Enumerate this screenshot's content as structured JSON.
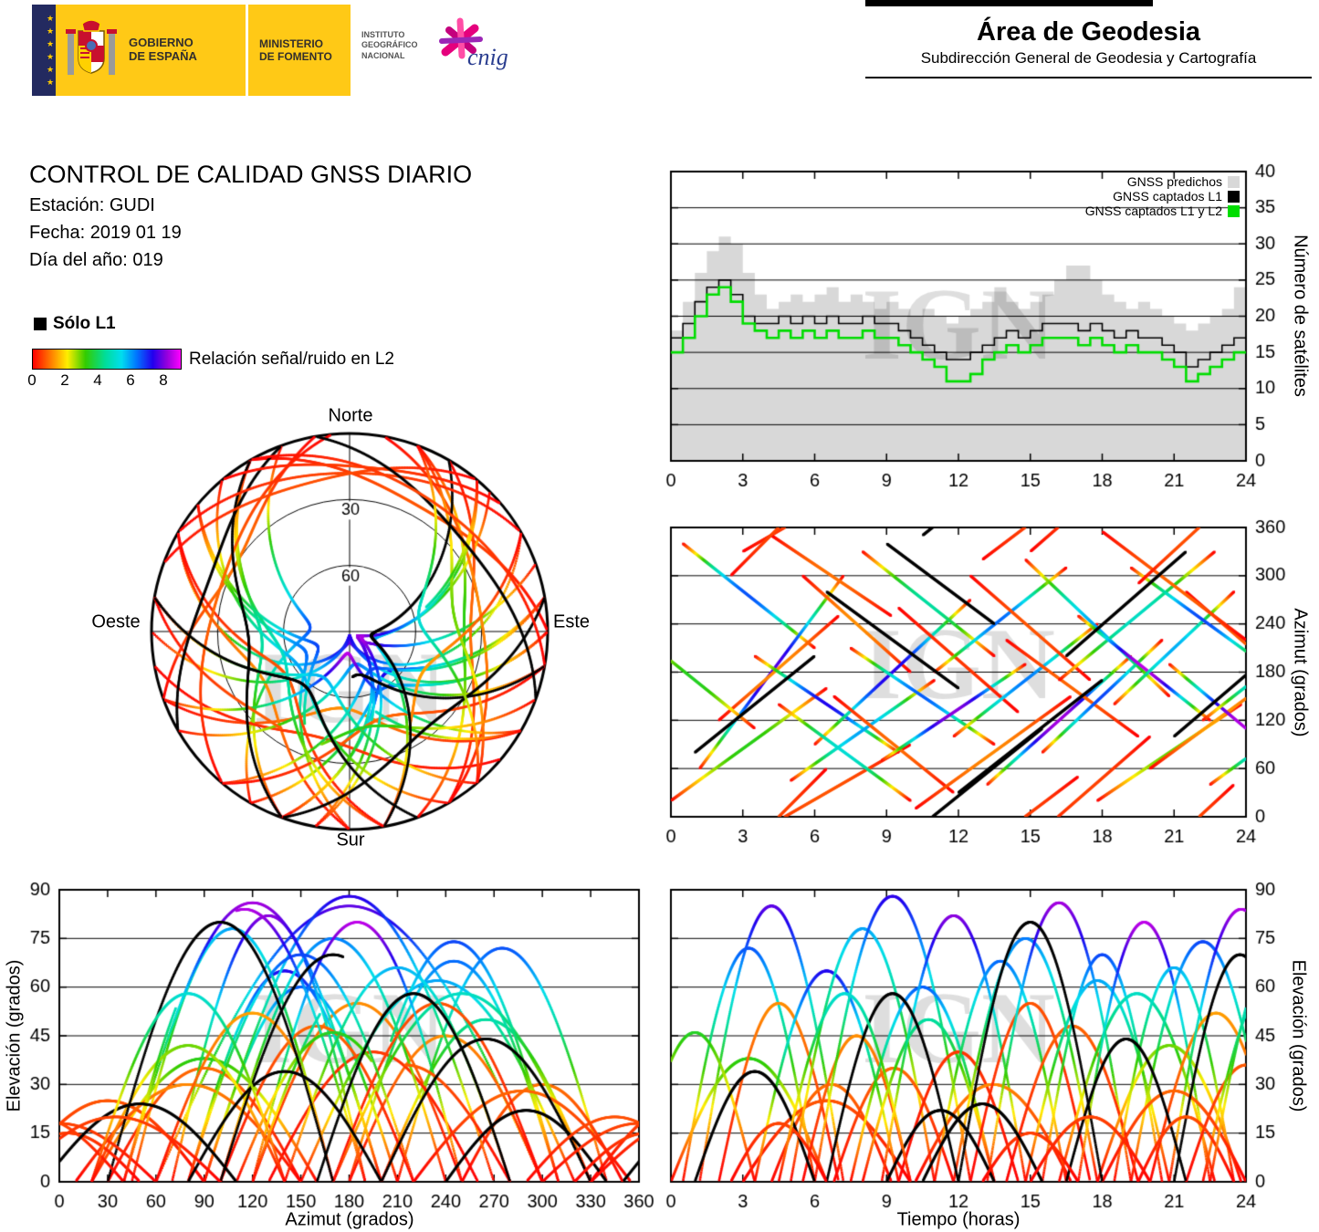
{
  "watermark": "IGN",
  "header": {
    "left": {
      "stars": "★★★★★★",
      "gobierno": [
        "GOBIERNO",
        "DE ESPAÑA"
      ],
      "ministerio": [
        "MINISTERIO",
        "DE FOMENTO"
      ],
      "ign": [
        "INSTITUTO",
        "GEOGRÁFICO",
        "NACIONAL"
      ],
      "cnig": "cnig",
      "yellow": "#ffc916",
      "navy": "#232a60"
    },
    "right": {
      "title": "Área de Geodesia",
      "subtitle": "Subdirección General de Geodesia y Cartografía"
    }
  },
  "info": {
    "title": "CONTROL DE CALIDAD GNSS DIARIO",
    "station": "Estación: GUDI",
    "date": "Fecha: 2019 01 19",
    "doy": "Día del año: 019"
  },
  "legend": {
    "solo_l1": "Sólo L1",
    "snr_label": "Relación señal/ruido en L2",
    "ticks": [
      0,
      2,
      4,
      6,
      8
    ]
  },
  "snr_colormap": [
    [
      0,
      "#ff0000"
    ],
    [
      1.2,
      "#ff8800"
    ],
    [
      2.1,
      "#ffee00"
    ],
    [
      3.2,
      "#33cc00"
    ],
    [
      4.4,
      "#00dd99"
    ],
    [
      5.4,
      "#00ddee"
    ],
    [
      6.3,
      "#0077ff"
    ],
    [
      7.3,
      "#2200ee"
    ],
    [
      8.2,
      "#9900dd"
    ],
    [
      9,
      "#ff00ff"
    ]
  ],
  "chart_data": [
    {
      "id": "satellite_count",
      "type": "area",
      "x": {
        "min": 0,
        "max": 24,
        "ticks": [
          0,
          3,
          6,
          9,
          12,
          15,
          18,
          21,
          24
        ],
        "label": ""
      },
      "y": {
        "min": 0,
        "max": 40,
        "ticks": [
          0,
          5,
          10,
          15,
          20,
          25,
          30,
          35,
          40
        ],
        "label": "Número de satélites"
      },
      "dt_hours": 0.5,
      "series": [
        {
          "name": "GNSS predichos",
          "style": "area",
          "color": "#d8d8d8",
          "values": [
            18,
            22,
            26,
            29,
            31,
            30,
            26,
            23,
            21,
            22,
            23,
            22,
            23,
            24,
            22,
            23,
            22,
            21,
            22,
            21,
            20,
            21,
            20,
            19,
            20,
            21,
            22,
            24,
            22,
            21,
            22,
            23,
            25,
            27,
            27,
            25,
            23,
            22,
            21,
            22,
            21,
            20,
            19,
            18,
            19,
            20,
            21,
            24,
            19
          ]
        },
        {
          "name": "GNSS captados L1",
          "style": "step",
          "color": "#000000",
          "values": [
            17,
            19,
            22,
            24,
            25,
            23,
            20,
            19,
            19,
            20,
            19,
            20,
            19,
            20,
            19,
            19,
            20,
            19,
            19,
            18,
            17,
            16,
            15,
            14,
            14,
            15,
            16,
            17,
            18,
            17,
            18,
            19,
            19,
            19,
            18,
            19,
            18,
            17,
            18,
            17,
            17,
            16,
            15,
            13,
            14,
            15,
            16,
            17,
            17
          ]
        },
        {
          "name": "GNSS captados L1 y L2",
          "style": "step",
          "color": "#00dd00",
          "values": [
            15,
            17,
            20,
            23,
            24,
            22,
            19,
            18,
            17,
            18,
            17,
            18,
            17,
            18,
            17,
            17,
            18,
            17,
            17,
            16,
            15,
            14,
            13,
            11,
            11,
            12,
            14,
            15,
            16,
            15,
            16,
            17,
            17,
            17,
            16,
            17,
            16,
            15,
            16,
            15,
            15,
            14,
            13,
            11,
            12,
            13,
            14,
            15,
            15
          ]
        }
      ]
    },
    {
      "id": "azimuth_vs_time",
      "type": "scatter",
      "x": {
        "min": 0,
        "max": 24,
        "ticks": [
          0,
          3,
          6,
          9,
          12,
          15,
          18,
          21,
          24
        ],
        "label": ""
      },
      "y": {
        "min": 0,
        "max": 360,
        "ticks": [
          0,
          60,
          120,
          180,
          240,
          300,
          360
        ],
        "label": "Azimut (grados)"
      }
    },
    {
      "id": "skyplot",
      "type": "polar",
      "labels": {
        "north": "Norte",
        "south": "Sur",
        "west": "Oeste",
        "east": "Este"
      },
      "ring_labels": [
        "30",
        "60"
      ]
    },
    {
      "id": "elevation_vs_azimuth",
      "type": "scatter",
      "x": {
        "min": 0,
        "max": 360,
        "ticks": [
          0,
          30,
          60,
          90,
          120,
          150,
          180,
          210,
          240,
          270,
          300,
          330,
          360
        ],
        "label": "Azimut (grados)"
      },
      "y": {
        "min": 0,
        "max": 90,
        "ticks": [
          0,
          15,
          30,
          45,
          60,
          75,
          90
        ],
        "label": "Elevación (grados)"
      }
    },
    {
      "id": "elevation_vs_time",
      "type": "scatter",
      "x": {
        "min": 0,
        "max": 24,
        "ticks": [
          0,
          3,
          6,
          9,
          12,
          15,
          18,
          21,
          24
        ],
        "label": "Tiempo (horas)"
      },
      "y": {
        "min": 0,
        "max": 90,
        "ticks": [
          0,
          15,
          30,
          45,
          60,
          75,
          90
        ],
        "label": "Elevación (grados)"
      }
    }
  ],
  "satellite_tracks": [
    [
      0.0,
      6.5,
      20,
      160,
      38,
      1.5,
      "c"
    ],
    [
      0.5,
      5.5,
      340,
      210,
      72,
      3.0,
      "c"
    ],
    [
      1.2,
      6.0,
      60,
      300,
      85,
      3.5,
      "c"
    ],
    [
      2.0,
      5.0,
      120,
      250,
      55,
      -1.5,
      "c"
    ],
    [
      3.0,
      7.0,
      330,
      450,
      25,
      -0.5,
      "c"
    ],
    [
      3.5,
      6.0,
      200,
      80,
      65,
      4.0,
      "c"
    ],
    [
      4.2,
      5.0,
      350,
      250,
      30,
      -0.5,
      "c"
    ],
    [
      5.0,
      6.0,
      45,
      170,
      78,
      2.0,
      "c"
    ],
    [
      5.5,
      4.5,
      300,
      180,
      45,
      -1.0,
      "c"
    ],
    [
      6.0,
      6.5,
      90,
      270,
      88,
      3.0,
      "c"
    ],
    [
      6.8,
      5.0,
      150,
      30,
      35,
      -0.8,
      "c"
    ],
    [
      7.5,
      6.0,
      210,
      90,
      60,
      3.5,
      "c"
    ],
    [
      8.0,
      5.5,
      330,
      200,
      50,
      2.0,
      "c"
    ],
    [
      8.8,
      6.0,
      70,
      190,
      82,
      4.0,
      "c"
    ],
    [
      9.5,
      5.0,
      260,
      130,
      40,
      -1.5,
      "c"
    ],
    [
      10.2,
      6.5,
      10,
      150,
      30,
      -0.3,
      "c"
    ],
    [
      11.0,
      5.5,
      180,
      310,
      68,
      3.0,
      "c"
    ],
    [
      11.8,
      6.0,
      100,
      240,
      75,
      2.5,
      "c"
    ],
    [
      12.5,
      5.0,
      300,
      170,
      55,
      -2.0,
      "c"
    ],
    [
      13.2,
      6.0,
      40,
      200,
      86,
      4.0,
      "c"
    ],
    [
      14.0,
      5.5,
      220,
      100,
      48,
      -1.5,
      "c"
    ],
    [
      14.8,
      6.0,
      320,
      150,
      62,
      2.8,
      "c"
    ],
    [
      15.5,
      5.0,
      80,
      220,
      70,
      3.2,
      "c"
    ],
    [
      16.2,
      6.5,
      170,
      330,
      58,
      2.0,
      "c"
    ],
    [
      17.0,
      5.5,
      250,
      120,
      80,
      4.5,
      "c"
    ],
    [
      17.8,
      6.0,
      20,
      140,
      42,
      0.8,
      "c"
    ],
    [
      18.5,
      5.0,
      140,
      280,
      66,
      2.5,
      "c"
    ],
    [
      19.2,
      6.0,
      310,
      180,
      74,
      3.0,
      "c"
    ],
    [
      20.0,
      5.5,
      60,
      180,
      52,
      -1.2,
      "c"
    ],
    [
      20.8,
      6.0,
      190,
      40,
      84,
      4.2,
      "c"
    ],
    [
      21.5,
      5.0,
      280,
      150,
      36,
      -1.0,
      "c"
    ],
    [
      22.2,
      6.0,
      120,
      260,
      64,
      2.8,
      "c"
    ],
    [
      -1.5,
      5.0,
      230,
      110,
      46,
      1.2,
      "c"
    ],
    [
      18.0,
      6.0,
      355,
      220,
      28,
      -0.5,
      "c"
    ],
    [
      1.0,
      5.0,
      80,
      200,
      34,
      0,
      "k"
    ],
    [
      6.5,
      5.5,
      280,
      160,
      58,
      0,
      "k"
    ],
    [
      12.0,
      6.0,
      30,
      170,
      80,
      0,
      "k"
    ],
    [
      16.5,
      5.0,
      200,
      330,
      44,
      0,
      "k"
    ],
    [
      21.0,
      5.5,
      100,
      240,
      70,
      0,
      "k"
    ],
    [
      9.0,
      4.5,
      340,
      240,
      22,
      0,
      "k"
    ],
    [
      2.5,
      4.0,
      300,
      420,
      18,
      -0.3,
      "c"
    ],
    [
      13.0,
      4.0,
      320,
      410,
      15,
      -0.2,
      "c"
    ],
    [
      19.5,
      4.0,
      290,
      400,
      20,
      -0.3,
      "c"
    ],
    [
      22.5,
      6.0,
      40,
      170,
      76,
      3.0,
      "c"
    ],
    [
      10.5,
      5.0,
      350,
      470,
      24,
      0,
      "k"
    ],
    [
      4.5,
      5.5,
      140,
      20,
      58,
      2.2,
      "c"
    ],
    [
      15.0,
      5.0,
      330,
      460,
      20,
      -0.4,
      "c"
    ]
  ]
}
